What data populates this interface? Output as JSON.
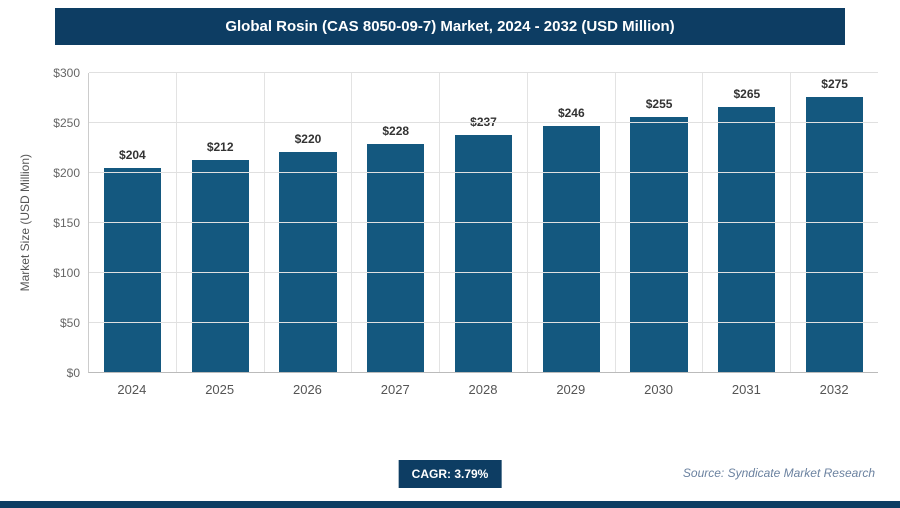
{
  "title": "Global Rosin (CAS 8050-09-7) Market, 2024 - 2032 (USD Million)",
  "chart_data": {
    "type": "bar",
    "title": "Global Rosin (CAS 8050-09-7) Market, 2024 - 2032 (USD Million)",
    "categories": [
      "2024",
      "2025",
      "2026",
      "2027",
      "2028",
      "2029",
      "2030",
      "2031",
      "2032"
    ],
    "values": [
      204,
      212,
      220,
      228,
      237,
      246,
      255,
      265,
      275
    ],
    "value_labels": [
      "$204",
      "$212",
      "$220",
      "$228",
      "$237",
      "$246",
      "$255",
      "$265",
      "$275"
    ],
    "xlabel": "",
    "ylabel": "Market Size (USD Million)",
    "ylim": [
      0,
      300
    ],
    "yticks": [
      {
        "value": 0,
        "label": "$0"
      },
      {
        "value": 50,
        "label": "$50"
      },
      {
        "value": 100,
        "label": "$100"
      },
      {
        "value": 150,
        "label": "$150"
      },
      {
        "value": 200,
        "label": "$200"
      },
      {
        "value": 250,
        "label": "$250"
      },
      {
        "value": 300,
        "label": "$300"
      }
    ],
    "grid": true,
    "legend": false
  },
  "footer": {
    "cagr": "CAGR: 3.79%",
    "source": "Source: Syndicate Market Research"
  },
  "colors": {
    "bar": "#14587f",
    "header_bg": "#0d3d63",
    "cagr_bg": "#0d3d63",
    "bottom_strip": "#0d3d63"
  }
}
